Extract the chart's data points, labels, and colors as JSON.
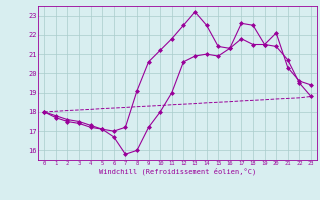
{
  "x": [
    0,
    1,
    2,
    3,
    4,
    5,
    6,
    7,
    8,
    9,
    10,
    11,
    12,
    13,
    14,
    15,
    16,
    17,
    18,
    19,
    20,
    21,
    22,
    23
  ],
  "line1": [
    18.0,
    17.8,
    17.6,
    17.5,
    17.3,
    17.1,
    16.7,
    15.8,
    16.0,
    17.2,
    18.0,
    19.0,
    20.6,
    20.9,
    21.0,
    20.9,
    21.3,
    21.8,
    21.5,
    21.5,
    22.1,
    20.3,
    19.6,
    19.4
  ],
  "line2": [
    18.0,
    17.7,
    17.5,
    17.4,
    17.2,
    17.1,
    17.0,
    17.2,
    19.1,
    20.6,
    21.2,
    21.8,
    22.5,
    23.2,
    22.5,
    21.4,
    21.3,
    22.6,
    22.5,
    21.5,
    21.4,
    20.7,
    19.5,
    18.8
  ],
  "line3": [
    18.0,
    18.03,
    18.07,
    18.1,
    18.13,
    18.17,
    18.2,
    18.23,
    18.27,
    18.3,
    18.33,
    18.37,
    18.4,
    18.43,
    18.47,
    18.5,
    18.53,
    18.57,
    18.6,
    18.63,
    18.67,
    18.7,
    18.73,
    18.8
  ],
  "line_color": "#990099",
  "bg_color": "#d8eef0",
  "grid_color": "#aacccc",
  "ylim": [
    15.5,
    23.5
  ],
  "yticks": [
    16,
    17,
    18,
    19,
    20,
    21,
    22,
    23
  ],
  "xlabel": "Windchill (Refroidissement éolien,°C)",
  "marker": "D",
  "marker_size": 2.0,
  "linewidth": 0.8
}
